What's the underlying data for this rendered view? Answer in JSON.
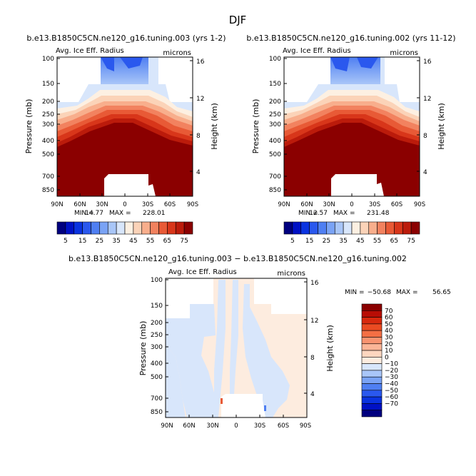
{
  "figure": {
    "title": "DJF"
  },
  "chart_data": [
    {
      "type": "heatmap",
      "title": "b.e13.B1850C5CN.ne120_g16.tuning.003 (yrs 1-2)",
      "subtitle_left": "Avg. Ice Eff. Radius",
      "subtitle_right": "microns",
      "ylabel": "Pressure (mb)",
      "ylabel_right": "Height (km)",
      "xticks": [
        "90N",
        "60N",
        "30N",
        "0",
        "30S",
        "60S",
        "90S"
      ],
      "yticks": [
        "100",
        "150",
        "200",
        "250",
        "300",
        "400",
        "500",
        "700",
        "850"
      ],
      "yticks_right": [
        "16",
        "12",
        "8",
        "4"
      ],
      "min_label": "MIN =",
      "min": "14.77",
      "max_label": "MAX =",
      "max": "228.01"
    },
    {
      "type": "heatmap",
      "title": "b.e13.B1850C5CN.ne120_g16.tuning.002 (yrs 11-12)",
      "subtitle_left": "Avg. Ice Eff. Radius",
      "subtitle_right": "microns",
      "ylabel": "Pressure (mb)",
      "ylabel_right": "Height (km)",
      "xticks": [
        "90N",
        "60N",
        "30N",
        "0",
        "30S",
        "60S",
        "90S"
      ],
      "yticks": [
        "100",
        "150",
        "200",
        "250",
        "300",
        "400",
        "500",
        "700",
        "850"
      ],
      "yticks_right": [
        "16",
        "12",
        "8",
        "4"
      ],
      "min_label": "MIN =",
      "min": "12.57",
      "max_label": "MAX =",
      "max": "231.48"
    },
    {
      "type": "heatmap",
      "title": "b.e13.B1850C5CN.ne120_g16.tuning.003 − b.e13.B1850C5CN.ne120_g16.tuning.002",
      "subtitle_left": "Avg. Ice Eff. Radius",
      "subtitle_right": "microns",
      "ylabel": "Pressure (mb)",
      "ylabel_right": "Height (km)",
      "xticks": [
        "90N",
        "60N",
        "30N",
        "0",
        "30S",
        "60S",
        "90S"
      ],
      "yticks": [
        "100",
        "150",
        "200",
        "250",
        "300",
        "400",
        "500",
        "700",
        "850"
      ],
      "yticks_right": [
        "16",
        "12",
        "8",
        "4"
      ],
      "min_label": "MIN =",
      "min": "−50.68",
      "max_label": "MAX =",
      "max": "56.65"
    }
  ],
  "colorbar_top": {
    "labels": [
      "5",
      "15",
      "25",
      "35",
      "45",
      "55",
      "65",
      "75"
    ],
    "colors": [
      "#00007f",
      "#0011c5",
      "#0a33e0",
      "#2a58ee",
      "#4f7ff2",
      "#7aa3f5",
      "#a9c6f8",
      "#d8e6fb",
      "#fdf0e2",
      "#fbd3b8",
      "#f8ae8c",
      "#f2825f",
      "#e85a36",
      "#d8361a",
      "#bb1b0b",
      "#8b0000"
    ]
  },
  "colorbar_diff": {
    "labels": [
      "70",
      "60",
      "50",
      "40",
      "30",
      "20",
      "10",
      "0",
      "−10",
      "−20",
      "−30",
      "−40",
      "−50",
      "−60",
      "−70"
    ],
    "colors": [
      "#8b0000",
      "#b80d05",
      "#d8290e",
      "#eb4b22",
      "#f46f44",
      "#f89370",
      "#fbb597",
      "#fdd6bf",
      "#fdecdf",
      "#d8e6fb",
      "#a9c6f8",
      "#7aa3f5",
      "#4f7ff2",
      "#2a58ee",
      "#0a33e0",
      "#0011c5",
      "#00007f"
    ]
  }
}
